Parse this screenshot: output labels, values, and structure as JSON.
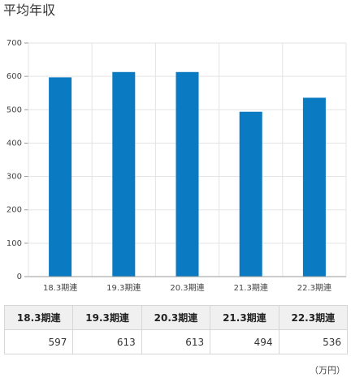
{
  "page_title": "平均年収",
  "chart_data": {
    "type": "bar",
    "categories": [
      "18.3期連",
      "19.3期連",
      "20.3期連",
      "21.3期連",
      "22.3期連"
    ],
    "values": [
      597,
      613,
      613,
      494,
      536
    ],
    "ylim": [
      0,
      700
    ],
    "yticks": [
      0,
      100,
      200,
      300,
      400,
      500,
      600,
      700
    ],
    "bar_color": "#0a7ac2",
    "grid": true,
    "legend": "none"
  },
  "table": {
    "headers": [
      "18.3期連",
      "19.3期連",
      "20.3期連",
      "21.3期連",
      "22.3期連"
    ],
    "values": [
      "597",
      "613",
      "613",
      "494",
      "536"
    ]
  },
  "unit_label": "（万円）"
}
